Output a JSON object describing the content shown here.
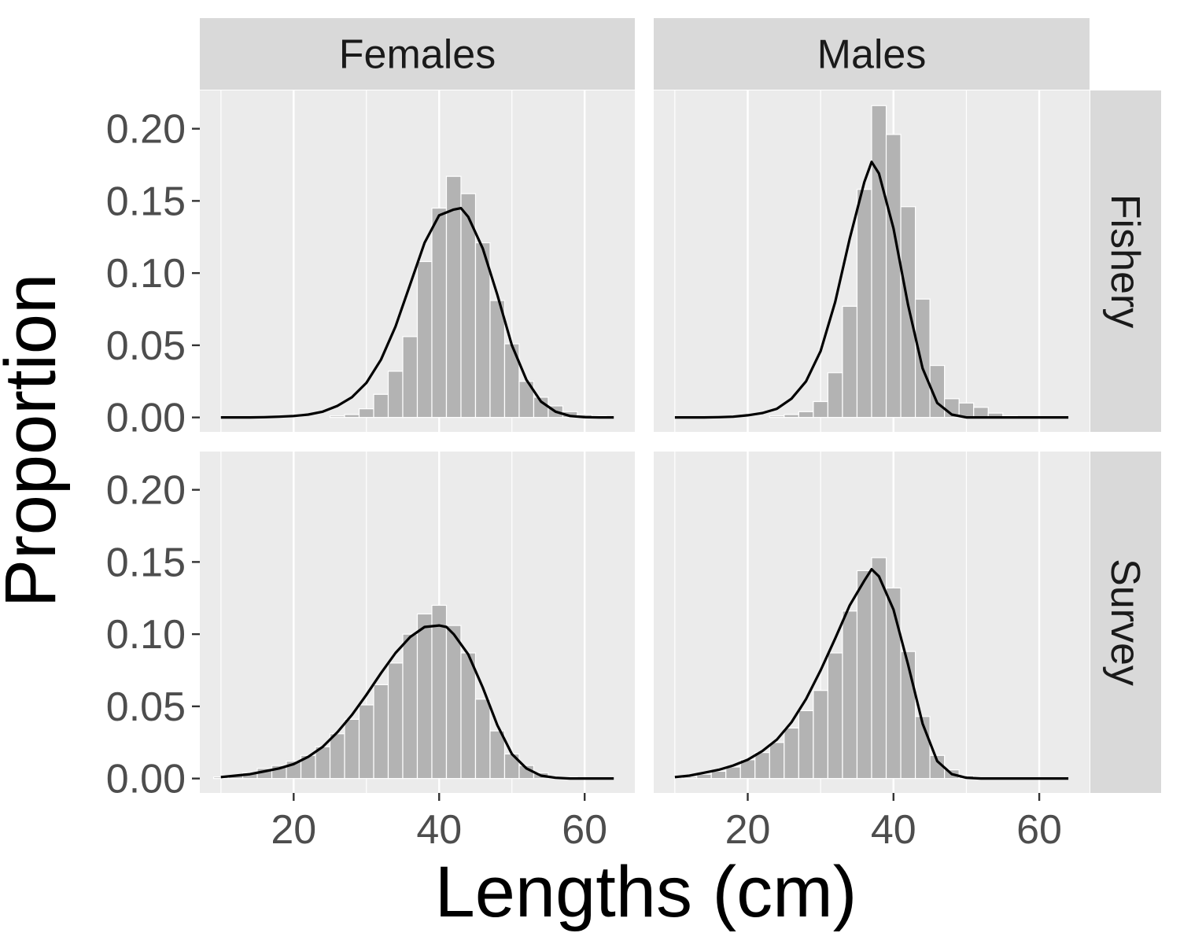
{
  "chart_data": {
    "type": "bar",
    "xlabel": "Lengths (cm)",
    "ylabel": "Proportion",
    "xlim": [
      7.1,
      66.9
    ],
    "ylim": [
      -0.01,
      0.2265
    ],
    "x_ticks": [
      20,
      40,
      60
    ],
    "x_tick_labels": [
      "20",
      "40",
      "60"
    ],
    "y_ticks": [
      0,
      0.05,
      0.1,
      0.15,
      0.2
    ],
    "y_tick_labels": [
      "0.00",
      "0.05",
      "0.10",
      "0.15",
      "0.20"
    ],
    "grid": true,
    "col_facets": [
      "Females",
      "Males"
    ],
    "row_facets": [
      "Fishery",
      "Survey"
    ],
    "bin_width": 2,
    "bar_color": "#b3b3b3",
    "line_color": "#000000",
    "panel_background": "#ebebeb",
    "strip_background": "#d9d9d9",
    "panels": [
      {
        "col": "Females",
        "row": "Fishery",
        "bars": {
          "x": [
            10,
            12,
            14,
            16,
            18,
            20,
            22,
            24,
            26,
            28,
            30,
            32,
            34,
            36,
            38,
            40,
            42,
            44,
            46,
            48,
            50,
            52,
            54,
            56,
            58,
            60,
            62,
            64
          ],
          "values": [
            0,
            0,
            0,
            0,
            0,
            0,
            0,
            0,
            0.001,
            0.002,
            0.006,
            0.016,
            0.032,
            0.056,
            0.108,
            0.145,
            0.167,
            0.155,
            0.121,
            0.081,
            0.051,
            0.025,
            0.014,
            0.008,
            0.004,
            0.002,
            0.001,
            0
          ]
        },
        "line": {
          "x": [
            10,
            12,
            14,
            16,
            18,
            20,
            22,
            24,
            26,
            28,
            30,
            32,
            34,
            36,
            38,
            40,
            42,
            43,
            44,
            46,
            48,
            50,
            52,
            54,
            56,
            58,
            60,
            62,
            64
          ],
          "values": [
            0,
            0,
            0,
            0.0002,
            0.0005,
            0.001,
            0.002,
            0.004,
            0.008,
            0.014,
            0.024,
            0.04,
            0.063,
            0.092,
            0.121,
            0.14,
            0.144,
            0.145,
            0.139,
            0.117,
            0.085,
            0.05,
            0.026,
            0.011,
            0.004,
            0.001,
            0.0002,
            0,
            0
          ]
        }
      },
      {
        "col": "Males",
        "row": "Fishery",
        "bars": {
          "x": [
            10,
            12,
            14,
            16,
            18,
            20,
            22,
            24,
            26,
            28,
            30,
            32,
            34,
            36,
            38,
            40,
            42,
            44,
            46,
            48,
            50,
            52,
            54,
            56,
            58,
            60,
            62,
            64
          ],
          "values": [
            0,
            0,
            0,
            0,
            0,
            0,
            0,
            0.001,
            0.002,
            0.004,
            0.011,
            0.031,
            0.077,
            0.158,
            0.216,
            0.196,
            0.146,
            0.082,
            0.036,
            0.013,
            0.01,
            0.007,
            0.003,
            0.001,
            0,
            0,
            0,
            0
          ]
        },
        "line": {
          "x": [
            10,
            12,
            14,
            16,
            18,
            20,
            22,
            24,
            26,
            28,
            30,
            32,
            34,
            36,
            37,
            38,
            40,
            42,
            44,
            46,
            48,
            50,
            52,
            54,
            56,
            58,
            60,
            62,
            64
          ],
          "values": [
            0,
            0,
            0,
            0.0002,
            0.0005,
            0.0015,
            0.003,
            0.006,
            0.013,
            0.025,
            0.046,
            0.08,
            0.124,
            0.163,
            0.177,
            0.169,
            0.131,
            0.078,
            0.034,
            0.01,
            0.002,
            0,
            0,
            0,
            0,
            0,
            0,
            0,
            0
          ]
        }
      },
      {
        "col": "Females",
        "row": "Survey",
        "bars": {
          "x": [
            10,
            12,
            14,
            16,
            18,
            20,
            22,
            24,
            26,
            28,
            30,
            32,
            34,
            36,
            38,
            40,
            42,
            44,
            46,
            48,
            50,
            52,
            54,
            56,
            58,
            60,
            62,
            64
          ],
          "values": [
            0.001,
            0.002,
            0.004,
            0.007,
            0.009,
            0.012,
            0.016,
            0.022,
            0.031,
            0.041,
            0.051,
            0.065,
            0.08,
            0.1,
            0.114,
            0.12,
            0.106,
            0.087,
            0.055,
            0.033,
            0.017,
            0.009,
            0.004,
            0.001,
            0.001,
            0,
            0,
            0
          ]
        },
        "line": {
          "x": [
            10,
            12,
            14,
            16,
            18,
            20,
            22,
            24,
            26,
            28,
            30,
            32,
            34,
            36,
            38,
            40,
            41,
            42,
            44,
            46,
            48,
            50,
            52,
            54,
            56,
            58,
            60,
            62,
            64
          ],
          "values": [
            0.001,
            0.002,
            0.003,
            0.005,
            0.007,
            0.01,
            0.015,
            0.022,
            0.032,
            0.044,
            0.058,
            0.073,
            0.087,
            0.098,
            0.105,
            0.106,
            0.105,
            0.1,
            0.086,
            0.063,
            0.037,
            0.017,
            0.007,
            0.002,
            0.0005,
            0,
            0,
            0,
            0
          ]
        }
      },
      {
        "col": "Males",
        "row": "Survey",
        "bars": {
          "x": [
            10,
            12,
            14,
            16,
            18,
            20,
            22,
            24,
            26,
            28,
            30,
            32,
            34,
            36,
            38,
            40,
            42,
            44,
            46,
            48,
            50,
            52,
            54,
            56,
            58,
            60,
            62,
            64
          ],
          "values": [
            0,
            0.001,
            0.003,
            0.005,
            0.008,
            0.013,
            0.018,
            0.025,
            0.035,
            0.047,
            0.061,
            0.087,
            0.116,
            0.144,
            0.153,
            0.132,
            0.088,
            0.043,
            0.016,
            0.006,
            0.002,
            0,
            0,
            0,
            0,
            0,
            0,
            0
          ]
        },
        "line": {
          "x": [
            10,
            12,
            14,
            16,
            18,
            20,
            22,
            24,
            26,
            28,
            30,
            32,
            34,
            36,
            37,
            38,
            40,
            42,
            44,
            46,
            48,
            50,
            52,
            54,
            56,
            58,
            60,
            62,
            64
          ],
          "values": [
            0.001,
            0.002,
            0.004,
            0.006,
            0.009,
            0.013,
            0.019,
            0.027,
            0.039,
            0.055,
            0.075,
            0.097,
            0.12,
            0.137,
            0.145,
            0.14,
            0.117,
            0.079,
            0.038,
            0.012,
            0.003,
            0.0005,
            0,
            0,
            0,
            0,
            0,
            0,
            0
          ]
        }
      }
    ]
  }
}
